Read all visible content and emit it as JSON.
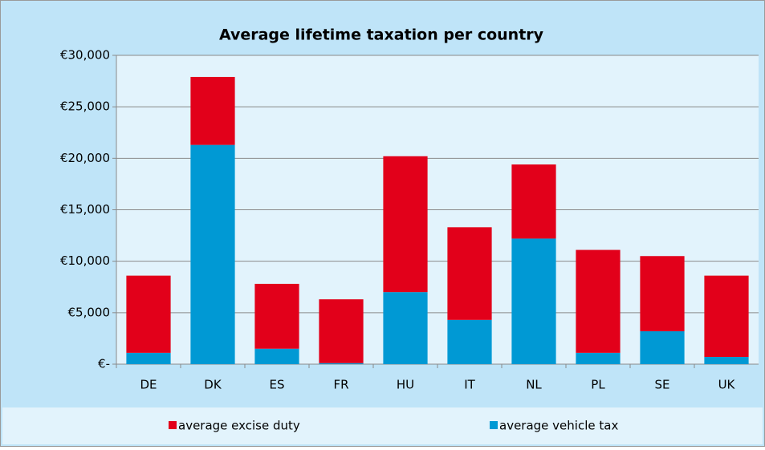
{
  "chart_data": {
    "type": "stacked_bar",
    "title": "Average lifetime taxation per country",
    "categories": [
      "DE",
      "DK",
      "ES",
      "FR",
      "HU",
      "IT",
      "NL",
      "PL",
      "SE",
      "UK"
    ],
    "series": [
      {
        "name": "average excise duty",
        "color": "#e2001a",
        "values": [
          7500,
          6600,
          6300,
          6200,
          13200,
          9000,
          7200,
          10000,
          7300,
          7900
        ]
      },
      {
        "name": "average vehicle tax",
        "color": "#0099d4",
        "values": [
          1100,
          21300,
          1500,
          100,
          7000,
          4300,
          12200,
          1100,
          3200,
          700
        ]
      }
    ],
    "ylim": [
      0,
      30000
    ],
    "yticks": [
      {
        "value": 0,
        "label": "€-"
      },
      {
        "value": 5000,
        "label": "€5,000"
      },
      {
        "value": 10000,
        "label": "€10,000"
      },
      {
        "value": 15000,
        "label": "€15,000"
      },
      {
        "value": 20000,
        "label": "€20,000"
      },
      {
        "value": 25000,
        "label": "€25,000"
      },
      {
        "value": 30000,
        "label": "€30,000"
      }
    ],
    "grid": true,
    "legend": "bottom"
  }
}
